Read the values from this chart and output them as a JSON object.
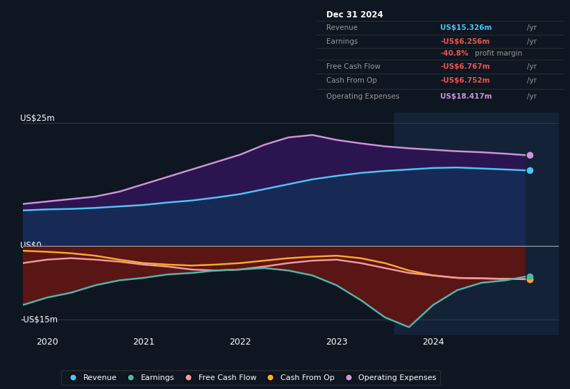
{
  "bg_color": "#0e1621",
  "plot_bg_color": "#0e1621",
  "years": [
    2019.75,
    2020.0,
    2020.25,
    2020.5,
    2020.75,
    2021.0,
    2021.25,
    2021.5,
    2021.75,
    2022.0,
    2022.25,
    2022.5,
    2022.75,
    2023.0,
    2023.25,
    2023.5,
    2023.75,
    2024.0,
    2024.25,
    2024.5,
    2024.75,
    2024.95
  ],
  "revenue": [
    7.2,
    7.4,
    7.5,
    7.7,
    8.0,
    8.3,
    8.8,
    9.2,
    9.8,
    10.5,
    11.5,
    12.5,
    13.5,
    14.2,
    14.8,
    15.2,
    15.5,
    15.8,
    15.9,
    15.7,
    15.5,
    15.326
  ],
  "op_expenses": [
    8.5,
    9.0,
    9.5,
    10.0,
    11.0,
    12.5,
    14.0,
    15.5,
    17.0,
    18.5,
    20.5,
    22.0,
    22.5,
    21.5,
    20.8,
    20.2,
    19.8,
    19.5,
    19.2,
    19.0,
    18.7,
    18.417
  ],
  "earnings": [
    -12.0,
    -10.5,
    -9.5,
    -8.0,
    -7.0,
    -6.5,
    -5.8,
    -5.5,
    -5.0,
    -4.8,
    -4.5,
    -5.0,
    -6.0,
    -8.0,
    -11.0,
    -14.5,
    -16.5,
    -12.0,
    -9.0,
    -7.5,
    -7.0,
    -6.256
  ],
  "free_cash": [
    -3.5,
    -2.8,
    -2.5,
    -2.8,
    -3.2,
    -3.8,
    -4.2,
    -4.8,
    -5.0,
    -4.8,
    -4.2,
    -3.5,
    -3.0,
    -2.8,
    -3.5,
    -4.5,
    -5.5,
    -6.0,
    -6.5,
    -6.6,
    -6.7,
    -6.767
  ],
  "cash_from_op": [
    -1.0,
    -1.2,
    -1.5,
    -2.0,
    -2.8,
    -3.5,
    -3.8,
    -4.0,
    -3.8,
    -3.5,
    -3.0,
    -2.5,
    -2.2,
    -2.0,
    -2.5,
    -3.5,
    -5.0,
    -6.0,
    -6.5,
    -6.6,
    -6.7,
    -6.752
  ],
  "revenue_color": "#4fc3f7",
  "earnings_color": "#4db6ac",
  "free_cash_color": "#ef9a9a",
  "cash_from_op_color": "#ffa726",
  "op_expenses_color": "#ce93d8",
  "revenue_fill": "#1a3a6e",
  "op_fill": "#2d1b5e",
  "earnings_fill": "#6e1a1a",
  "ylabel_25": "US$25m",
  "ylabel_0": "US$0",
  "ylabel_neg15": "-US$15m",
  "xlim": [
    2019.75,
    2025.3
  ],
  "ylim": [
    -18,
    27
  ],
  "info_title": "Dec 31 2024",
  "info_revenue_label": "Revenue",
  "info_revenue_val": "US$15.326m",
  "info_earnings_label": "Earnings",
  "info_earnings_val": "-US$6.256m",
  "info_margin_val": "-40.8%",
  "info_fcf_label": "Free Cash Flow",
  "info_fcf_val": "-US$6.767m",
  "info_cop_label": "Cash From Op",
  "info_cop_val": "-US$6.752m",
  "info_opex_label": "Operating Expenses",
  "info_opex_val": "US$18.417m",
  "legend_labels": [
    "Revenue",
    "Earnings",
    "Free Cash Flow",
    "Cash From Op",
    "Operating Expenses"
  ],
  "legend_colors": [
    "#4fc3f7",
    "#4db6ac",
    "#ef9a9a",
    "#ffa726",
    "#ce93d8"
  ],
  "highlight_x_start": 2023.6,
  "highlight_x_end": 2025.3
}
